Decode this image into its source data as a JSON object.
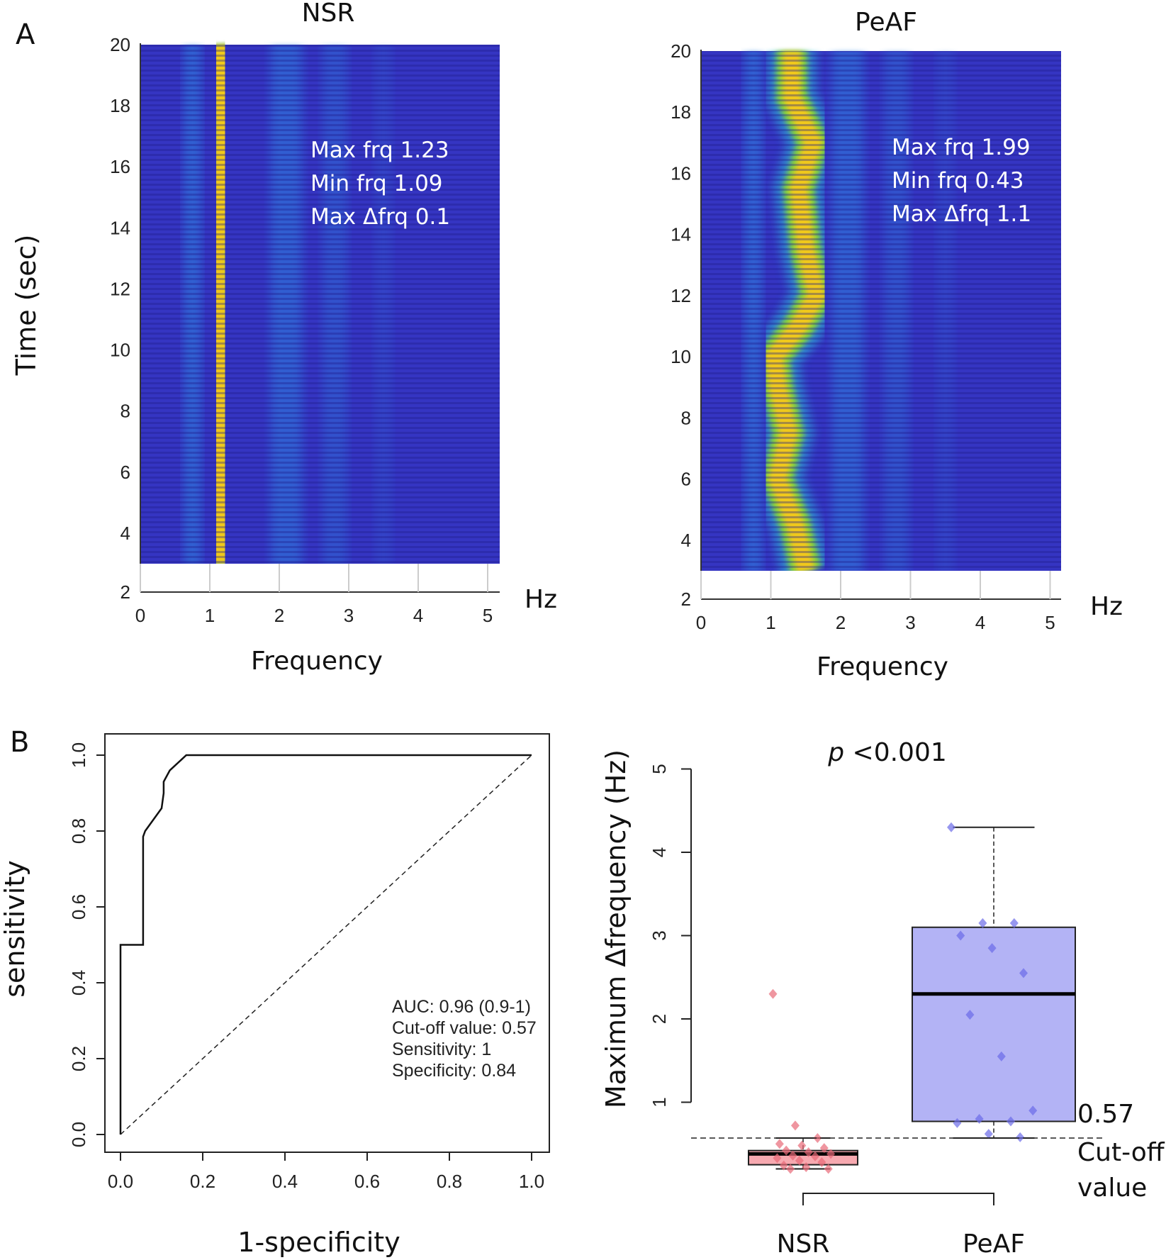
{
  "panels": {
    "a": "A",
    "b": "B"
  },
  "shared": {
    "time_label": "Time (sec)",
    "freq_label": "Frequency",
    "hz": "Hz",
    "y_ticks": [
      "2",
      "4",
      "6",
      "8",
      "10",
      "12",
      "14",
      "16",
      "18",
      "20"
    ],
    "x_ticks": [
      "0",
      "1",
      "2",
      "3",
      "4",
      "5"
    ]
  },
  "chart_data": [
    {
      "type": "heatmap",
      "title": "NSR",
      "xlabel": "Frequency",
      "xunit": "Hz",
      "ylabel": "Time (sec)",
      "xlim": [
        0,
        5
      ],
      "ylim": [
        2,
        20
      ],
      "data_time_range": [
        3,
        20
      ],
      "annotations": [
        "Max frq 1.23",
        "Min frq 1.09",
        "Max Δfrq 0.1"
      ],
      "dominant_ridge": [
        {
          "t": 3,
          "f": 1.13
        },
        {
          "t": 5,
          "f": 1.15
        },
        {
          "t": 7,
          "f": 1.12
        },
        {
          "t": 9,
          "f": 1.14
        },
        {
          "t": 11,
          "f": 1.13
        },
        {
          "t": 13,
          "f": 1.11
        },
        {
          "t": 15,
          "f": 1.15
        },
        {
          "t": 17,
          "f": 1.2
        },
        {
          "t": 19,
          "f": 1.15
        },
        {
          "t": 20,
          "f": 1.13
        }
      ]
    },
    {
      "type": "heatmap",
      "title": "PeAF",
      "xlabel": "Frequency",
      "xunit": "Hz",
      "ylabel": "Time (sec)",
      "xlim": [
        0,
        5
      ],
      "ylim": [
        2,
        20
      ],
      "data_time_range": [
        3,
        20
      ],
      "annotations": [
        "Max frq 1.99",
        "Min frq 0.43",
        "Max Δfrq 1.1"
      ],
      "dominant_ridge": [
        {
          "t": 3,
          "f": 1.5
        },
        {
          "t": 4.5,
          "f": 1.35
        },
        {
          "t": 6,
          "f": 1.1
        },
        {
          "t": 7.5,
          "f": 1.25
        },
        {
          "t": 9,
          "f": 1.1
        },
        {
          "t": 10,
          "f": 1.05
        },
        {
          "t": 11,
          "f": 1.4
        },
        {
          "t": 12,
          "f": 1.65
        },
        {
          "t": 13.5,
          "f": 1.5
        },
        {
          "t": 15.5,
          "f": 1.4
        },
        {
          "t": 17,
          "f": 1.6
        },
        {
          "t": 18.5,
          "f": 1.3
        },
        {
          "t": 20,
          "f": 1.3
        }
      ]
    },
    {
      "type": "line",
      "xlabel": "1-specificity",
      "ylabel": "sensitivity",
      "xlim": [
        0,
        1
      ],
      "ylim": [
        0,
        1
      ],
      "x_ticks": [
        "0.0",
        "0.2",
        "0.4",
        "0.6",
        "0.8",
        "1.0"
      ],
      "y_ticks": [
        "0.0",
        "0.2",
        "0.4",
        "0.6",
        "0.8",
        "1.0"
      ],
      "series": [
        {
          "x": [
            0,
            0,
            0.055,
            0.055,
            0.06,
            0.1,
            0.105,
            0.105,
            0.12,
            0.16,
            1.0
          ],
          "y": [
            0,
            0.5,
            0.5,
            0.785,
            0.8,
            0.86,
            0.9,
            0.93,
            0.96,
            1.0,
            1.0
          ]
        }
      ],
      "reference_line": {
        "x": [
          0,
          1
        ],
        "y": [
          0,
          1
        ]
      },
      "annotations": [
        "AUC: 0.96 (0.9-1)",
        "Cut-off value: 0.57",
        "Sensitivity: 1",
        "Specificity: 0.84"
      ]
    },
    {
      "type": "box",
      "title": "p <0.001",
      "title_italic": "p",
      "title_rest": " <0.001",
      "ylabel": "Maximum Δfrequency (Hz)",
      "ylim": [
        0,
        5
      ],
      "y_ticks": [
        "1",
        "2",
        "3",
        "4",
        "5"
      ],
      "categories": [
        "NSR",
        "PeAF"
      ],
      "cutoff": {
        "value": 0.57,
        "label": "0.57",
        "note": [
          "Cut-off",
          "value"
        ]
      },
      "groups": [
        {
          "name": "NSR",
          "min": 0.2,
          "q1": 0.25,
          "median": 0.38,
          "q3": 0.42,
          "max": 0.57,
          "color": "#f7a9b0",
          "points": [
            2.3,
            0.72,
            0.57,
            0.5,
            0.48,
            0.45,
            0.42,
            0.4,
            0.38,
            0.36,
            0.35,
            0.33,
            0.3,
            0.28,
            0.24,
            0.22,
            0.2,
            0.2
          ]
        },
        {
          "name": "PeAF",
          "min": 0.57,
          "q1": 0.77,
          "median": 2.3,
          "q3": 3.1,
          "max": 4.3,
          "color": "#b3b3f5",
          "points": [
            4.3,
            3.15,
            3.15,
            3.0,
            2.85,
            2.55,
            2.05,
            1.55,
            0.9,
            0.8,
            0.77,
            0.75,
            0.62,
            0.58
          ]
        }
      ]
    }
  ]
}
